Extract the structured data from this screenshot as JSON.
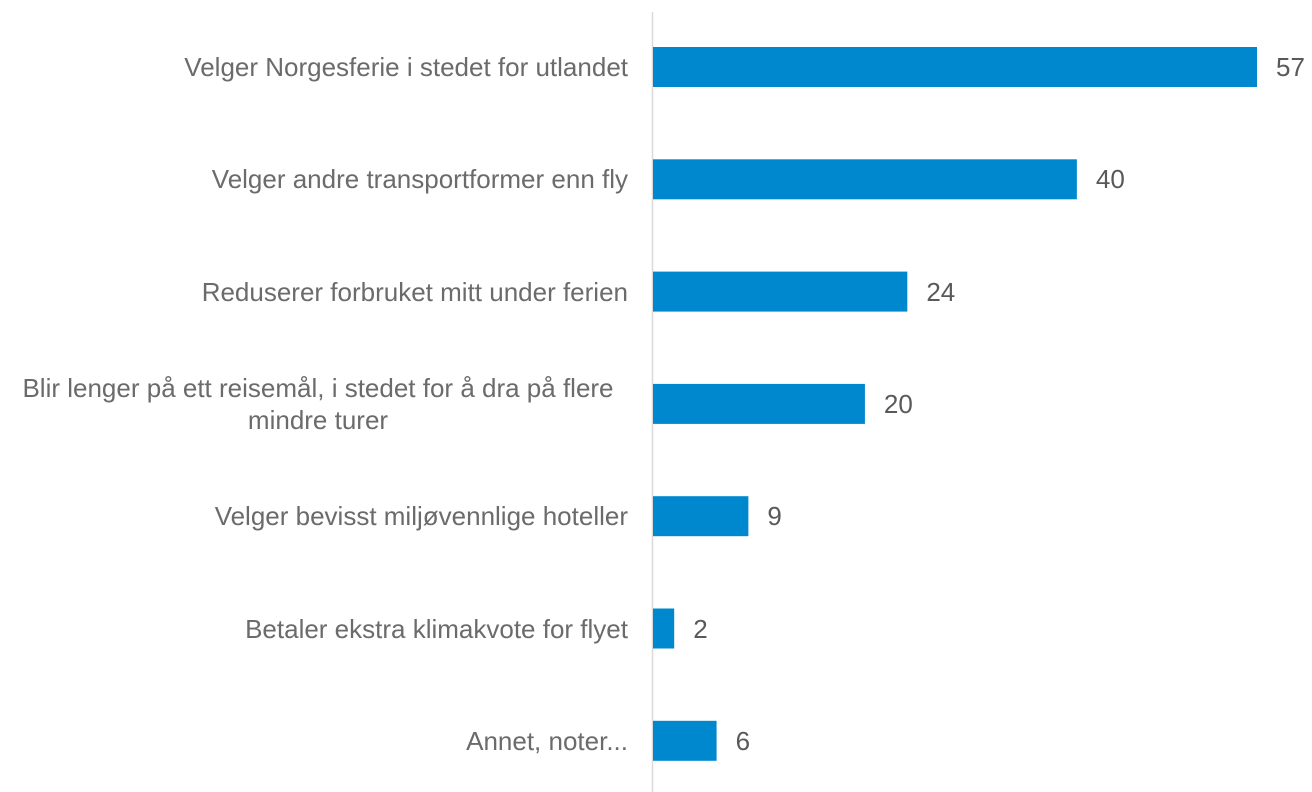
{
  "chart_data": {
    "type": "bar",
    "orientation": "horizontal",
    "categories": [
      "Velger Norgesferie i stedet for utlandet",
      "Velger andre transportformer enn fly",
      "Reduserer forbruket mitt under ferien",
      "Blir lenger på ett reisemål, i stedet for å dra på flere mindre turer",
      "Velger bevisst miljøvennlige hoteller",
      "Betaler ekstra klimakvote for flyet",
      "Annet, noter..."
    ],
    "values": [
      57,
      40,
      24,
      20,
      9,
      2,
      6
    ],
    "color": "#0088cf"
  }
}
